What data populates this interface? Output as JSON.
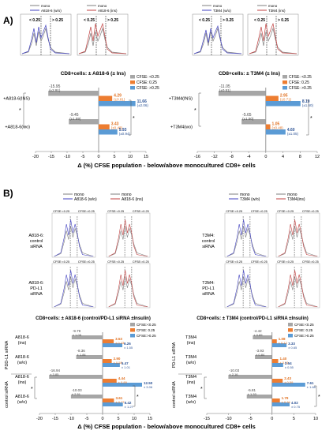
{
  "panelA": {
    "label": "A)",
    "hist1": {
      "legend": [
        "mono",
        "A818-6 (w/o)"
      ],
      "gate_left": "< 0.25",
      "gate_right": "> 0.25"
    },
    "hist2": {
      "legend": [
        "mono",
        "A818-6 (ins)"
      ],
      "gate_left": "< 0.25",
      "gate_right": "> 0.25"
    },
    "hist3": {
      "legend": [
        "mono",
        "T3M4 (w/o)"
      ],
      "gate_left": "< 0.25",
      "gate_right": "> 0.25"
    },
    "hist4": {
      "legend": [
        "mono",
        "T3M4 (ins)"
      ],
      "gate_left": "< 0.25",
      "gate_right": "> 0.25"
    },
    "left_chart": {
      "title": "CD8+cells: ± A818-6 (± Ins)",
      "legend": [
        "CFSE: <0.25",
        "CFSE:  0.25",
        "CFSE: >0.25"
      ],
      "rows": [
        {
          "label": "+A818-6(INS)",
          "gray": "-15.95",
          "gray_err": "(±2.91)",
          "orange": "4.29",
          "orange_err": "(±0.81)",
          "blue": "11.66",
          "blue_err": "(±2.06)"
        },
        {
          "label": "+A818-6(wo)",
          "gray": "-9.45",
          "gray_err": "(±1.59)",
          "orange": "3.43",
          "orange_err": "(±0.48)",
          "blue": "5.93",
          "blue_err": "(±0.94)"
        }
      ],
      "ticks": [
        "-20",
        "-15",
        "-10",
        "-5",
        "0",
        "5",
        "10",
        "15"
      ]
    },
    "right_chart": {
      "title": "CD8+cells: ± T3M4 (± Ins)",
      "legend": [
        "CFSE: <0.25",
        "CFSE:  0.25",
        "CFSE: >0.25"
      ],
      "rows": [
        {
          "label": "+T3M4(INS)",
          "gray": "-11.05",
          "gray_err": "(±0.51)",
          "orange": "2.95",
          "orange_err": "(±0.71)",
          "blue": "8.10",
          "blue_err": "(±1.60)"
        },
        {
          "label": "+T3M4(wo)",
          "gray": "-5.65",
          "gray_err": "(±1.50)",
          "orange": "1.05",
          "orange_err": "(±0.48)",
          "blue": "4.60",
          "blue_err": "(±1.05)"
        }
      ],
      "ticks": [
        "-16",
        "-12",
        "-8",
        "-4",
        "0",
        "4",
        "8",
        "12"
      ]
    },
    "xlabel": "Δ (%) CFSE population - below/above monocultured CD8+ cells",
    "stars": [
      "*",
      "*",
      "*",
      "*"
    ]
  },
  "panelB": {
    "label": "B)",
    "left": {
      "legend_mono": "mono",
      "legend_a": "A818-6 (w/o)",
      "legend_mono2": "mono",
      "legend_b": "A818-6 (ins)",
      "row1_label": [
        "A818-6:",
        "control",
        "siRNA"
      ],
      "row2_label": [
        "A818-6:",
        "PD-L1",
        "siRNA"
      ],
      "gate_left": "CFSE:<0.25",
      "gate_right": "CFSE:>0.25"
    },
    "right": {
      "legend_mono": "mono",
      "legend_a": "T3M4 (w/o)",
      "legend_mono2": "mono",
      "legend_b": "T3M4(ins)",
      "row1_label": [
        "T3M4:",
        "control",
        "siRNA"
      ],
      "row2_label": [
        "T3M4:",
        "PD-L1",
        "siRNA"
      ],
      "gate_left": "CFSE:<0.25",
      "gate_right": "CFSE:>0.25"
    },
    "left_chart": {
      "title": "CD8+cells: ± A818-6 (control/PD-L1 siRNA ±Insulin)",
      "legend": [
        "CFSE:<0.25",
        "CFSE:  0.25",
        "CFSE:>0.25"
      ],
      "group_labels": [
        "PDD-L1 siRNA",
        "control siRNA"
      ],
      "rows": [
        {
          "label": [
            "A818-6",
            "(ins)"
          ],
          "gray": "-9.79",
          "gray_err": "± 1.05",
          "orange": "3.53",
          "orange_err": "± 0.43",
          "blue": "6.26",
          "blue_err": "± 1.55"
        },
        {
          "label": [
            "A818-6",
            "(w/o)"
          ],
          "gray": "-8.36",
          "gray_err": "± 1.84",
          "orange": "2.90",
          "orange_err": "± 0.58",
          "blue": "5.47",
          "blue_err": "± 1.01"
        },
        {
          "label": [
            "A818-6",
            "(ins)"
          ],
          "gray": "-16.94",
          "gray_err": "± 3.85",
          "orange": "4.44",
          "orange_err": "± 0.89",
          "blue": "12.50",
          "blue_err": "± 3.06"
        },
        {
          "label": [
            "A818-6",
            "(w/o)"
          ],
          "gray": "-10.03",
          "gray_err": "± 2.51",
          "orange": "3.61",
          "orange_err": "± 0.77",
          "blue": "6.42",
          "blue_err": "± 1.27"
        }
      ],
      "ticks": [
        "-20",
        "-15",
        "-10",
        "-5",
        "0",
        "5",
        "10",
        "15"
      ]
    },
    "right_chart": {
      "title": "CD8+cells: ± T3M4 (control/PD-L1 siRNA ±Insulin)",
      "legend": [
        "CFSE:<0.25",
        "CFSE:  0.25",
        "CFSE:>0.25"
      ],
      "group_labels": [
        "PD-L1 siRNA",
        "control siRNA"
      ],
      "rows": [
        {
          "label": [
            "T3M4",
            "(ins)"
          ],
          "gray": "-4.42",
          "gray_err": "± 0.89",
          "orange": "1.08",
          "orange_err": "± 0.12",
          "blue": "3.33",
          "blue_err": "± 0.65"
        },
        {
          "label": [
            "T3M4",
            "(w/o)"
          ],
          "gray": "-3.93",
          "gray_err": "± 0.84",
          "orange": "1.40",
          "orange_err": "± 0.31",
          "blue": "2.54",
          "blue_err": "± 0.55"
        },
        {
          "label": [
            "T3M4",
            "(ins)"
          ],
          "gray": "-10.03",
          "gray_err": "± 2.16",
          "orange": "2.43",
          "orange_err": "± 0.59",
          "blue": "7.61",
          "blue_err": "± 1.68"
        },
        {
          "label": [
            "T3M4",
            "(w/o)"
          ],
          "gray": "-5.81",
          "gray_err": "± 1.33",
          "orange": "1.79",
          "orange_err": "± 0.34",
          "blue": "4.02",
          "blue_err": "± 0.75"
        }
      ],
      "ticks": [
        "-15",
        "-10",
        "-5",
        "0",
        "5",
        "10"
      ]
    },
    "xlabel": "Δ (%) CFSE population - below/above monocultured CD8+ cells"
  },
  "colors": {
    "gray": "#a6a6a6",
    "orange": "#ed7d31",
    "blue": "#5b9bd5",
    "mono_line": "#7f7f7f",
    "blue_line": "#4040c0",
    "red_line": "#c04040",
    "orange_text": "#e07020",
    "blue_text": "#2f5597"
  },
  "chart_data": [
    {
      "type": "bar",
      "title": "CD8+cells: ± A818-6 (± Ins)",
      "categories": [
        "+A818-6(INS)",
        "+A818-6(wo)"
      ],
      "series": [
        {
          "name": "CFSE: <0.25",
          "values": [
            -15.95,
            -9.45
          ]
        },
        {
          "name": "CFSE:  0.25",
          "values": [
            4.29,
            3.43
          ]
        },
        {
          "name": "CFSE: >0.25",
          "values": [
            11.66,
            5.93
          ]
        }
      ],
      "xlim": [
        -20,
        15
      ]
    },
    {
      "type": "bar",
      "title": "CD8+cells: ± T3M4 (± Ins)",
      "categories": [
        "+T3M4(INS)",
        "+T3M4(wo)"
      ],
      "series": [
        {
          "name": "CFSE: <0.25",
          "values": [
            -11.05,
            -5.65
          ]
        },
        {
          "name": "CFSE:  0.25",
          "values": [
            2.95,
            1.05
          ]
        },
        {
          "name": "CFSE: >0.25",
          "values": [
            8.1,
            4.6
          ]
        }
      ],
      "xlim": [
        -16,
        12
      ]
    },
    {
      "type": "bar",
      "title": "CD8+cells: ± A818-6 (control/PD-L1 siRNA ±Insulin)",
      "categories": [
        "A818-6 (ins)",
        "A818-6 (w/o)",
        "A818-6 (ins)",
        "A818-6 (w/o)"
      ],
      "series": [
        {
          "name": "CFSE:<0.25",
          "values": [
            -9.79,
            -8.36,
            -16.94,
            -10.03
          ]
        },
        {
          "name": "CFSE:  0.25",
          "values": [
            3.53,
            2.9,
            4.44,
            3.61
          ]
        },
        {
          "name": "CFSE:>0.25",
          "values": [
            6.26,
            5.47,
            12.5,
            6.42
          ]
        }
      ],
      "xlim": [
        -20,
        15
      ]
    },
    {
      "type": "bar",
      "title": "CD8+cells: ± T3M4 (control/PD-L1 siRNA ±Insulin)",
      "categories": [
        "T3M4 (ins)",
        "T3M4 (w/o)",
        "T3M4 (ins)",
        "T3M4 (w/o)"
      ],
      "series": [
        {
          "name": "CFSE:<0.25",
          "values": [
            -4.42,
            -3.93,
            -10.03,
            -5.81
          ]
        },
        {
          "name": "CFSE:  0.25",
          "values": [
            1.08,
            1.4,
            2.43,
            1.79
          ]
        },
        {
          "name": "CFSE:>0.25",
          "values": [
            3.33,
            2.54,
            7.61,
            4.02
          ]
        }
      ],
      "xlim": [
        -15,
        10
      ]
    }
  ]
}
